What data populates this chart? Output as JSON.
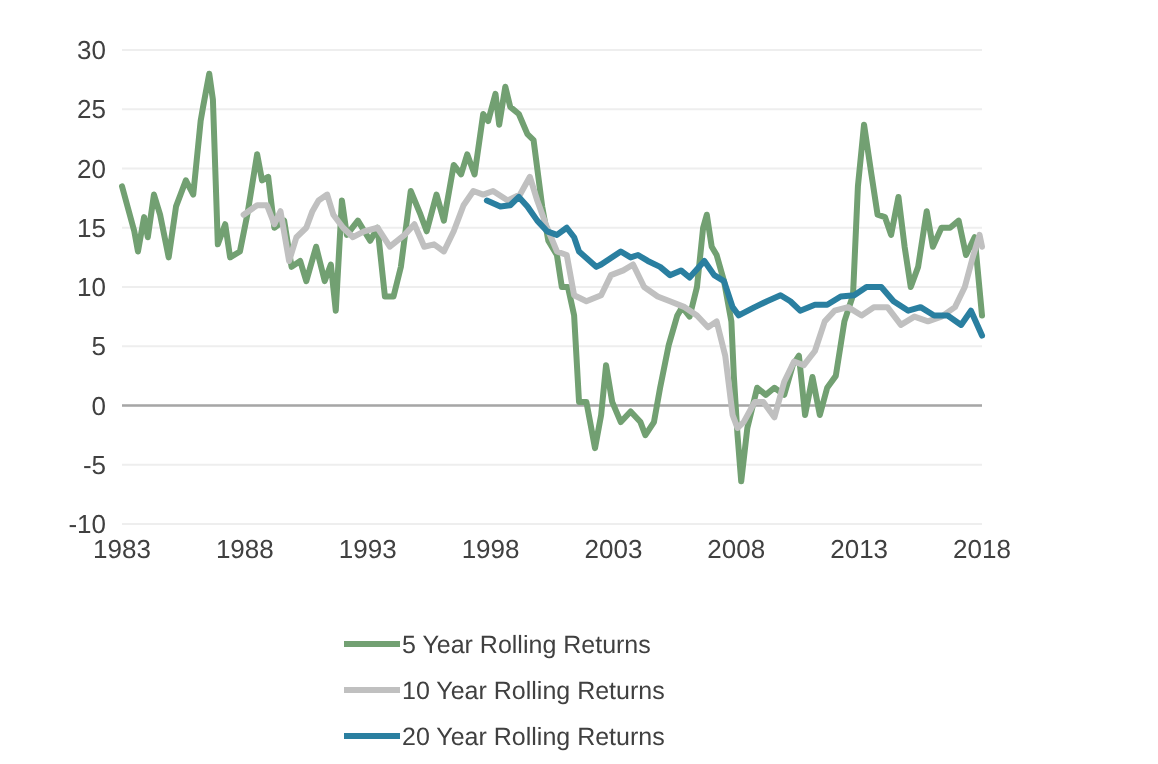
{
  "chart_data": {
    "type": "line",
    "xlim": [
      1983,
      2018
    ],
    "xticks": [
      1983,
      1988,
      1993,
      1998,
      2003,
      2008,
      2013,
      2018
    ],
    "ylim": [
      -10,
      30
    ],
    "yticks": [
      -10,
      -5,
      0,
      5,
      10,
      15,
      20,
      25,
      30
    ],
    "grid": "y",
    "legend": "bottom",
    "marker": "none",
    "line_style": "solid",
    "ref_lines": [
      {
        "axis": "y",
        "value": 0,
        "color": "#a6a6a6"
      }
    ],
    "series": [
      {
        "name": "5 Year Rolling Returns",
        "color": "#72a072",
        "x": [
          1983,
          1983.5,
          1983.65,
          1983.9,
          1984.05,
          1984.3,
          1984.55,
          1984.9,
          1985.2,
          1985.6,
          1985.9,
          1986.2,
          1986.3,
          1986.55,
          1986.7,
          1986.9,
          1987.2,
          1987.4,
          1987.8,
          1988.1,
          1988.5,
          1988.7,
          1988.95,
          1989.2,
          1989.6,
          1989.9,
          1990.25,
          1990.5,
          1990.9,
          1991.25,
          1991.5,
          1991.7,
          1991.95,
          1992.15,
          1992.6,
          1993.1,
          1993.4,
          1993.7,
          1994.05,
          1994.35,
          1994.75,
          1995.15,
          1995.4,
          1995.8,
          1996.1,
          1996.5,
          1996.8,
          1997.05,
          1997.35,
          1997.7,
          1997.9,
          1998.2,
          1998.35,
          1998.6,
          1998.8,
          1999.15,
          1999.5,
          1999.75,
          2000.1,
          2000.35,
          2000.7,
          2000.9,
          2001.15,
          2001.4,
          2001.6,
          2001.9,
          2002.25,
          2002.5,
          2002.7,
          2002.95,
          2003.3,
          2003.7,
          2004.1,
          2004.3,
          2004.65,
          2004.9,
          2005.25,
          2005.6,
          2005.8,
          2006.1,
          2006.4,
          2006.65,
          2006.8,
          2007,
          2007.2,
          2007.5,
          2007.8,
          2007.9,
          2008.05,
          2008.2,
          2008.45,
          2008.85,
          2009.2,
          2009.55,
          2009.95,
          2010.3,
          2010.55,
          2010.8,
          2011.1,
          2011.4,
          2011.7,
          2012.05,
          2012.4,
          2012.75,
          2012.95,
          2013.2,
          2013.5,
          2013.75,
          2014.05,
          2014.3,
          2014.6,
          2014.85,
          2015.1,
          2015.4,
          2015.75,
          2016,
          2016.35,
          2016.7,
          2017.05,
          2017.35,
          2017.7,
          2018
        ],
        "values": [
          18.5,
          14.7,
          13,
          15.9,
          14.2,
          17.8,
          16.1,
          12.5,
          16.8,
          19,
          17.8,
          24,
          25.2,
          28,
          25.8,
          13.6,
          15.3,
          12.5,
          13,
          16.1,
          21.2,
          19,
          19.3,
          15,
          15.6,
          11.7,
          12.2,
          10.5,
          13.4,
          10.5,
          11.9,
          8,
          17.3,
          14.4,
          15.6,
          13.9,
          15,
          9.2,
          9.2,
          11.7,
          18.1,
          16.1,
          14.7,
          17.8,
          15.6,
          20.3,
          19.5,
          21.2,
          19.5,
          24.6,
          24,
          26.3,
          23.7,
          26.9,
          25.2,
          24.6,
          22.9,
          22.4,
          16.8,
          13.9,
          12.7,
          10,
          10,
          7.6,
          0.3,
          0.3,
          -3.6,
          -0.8,
          3.4,
          0.3,
          -1.4,
          -0.5,
          -1.4,
          -2.5,
          -1.4,
          1.5,
          5.1,
          7.6,
          8.3,
          7.5,
          10,
          15,
          16.1,
          13.4,
          12.7,
          10.5,
          7.1,
          2.5,
          -2.5,
          -6.4,
          -1.9,
          1.5,
          0.9,
          1.5,
          0.9,
          3.4,
          4.2,
          -0.8,
          2.4,
          -0.8,
          1.5,
          2.5,
          7.1,
          9.3,
          18.5,
          23.7,
          19.5,
          16.1,
          15.9,
          14.4,
          17.6,
          13.4,
          10,
          11.7,
          16.4,
          13.4,
          15,
          15,
          15.6,
          12.7,
          14.2,
          7.6
        ]
      },
      {
        "name": "10 Year Rolling Returns",
        "color": "#c0c0c0",
        "x": [
          1987.95,
          1988.5,
          1988.9,
          1989.2,
          1989.45,
          1989.8,
          1990.1,
          1990.5,
          1990.75,
          1991,
          1991.35,
          1991.6,
          1992,
          1992.4,
          1992.85,
          1993.4,
          1993.9,
          1994.5,
          1994.9,
          1995.3,
          1995.7,
          1996.1,
          1996.5,
          1996.9,
          1997.3,
          1997.7,
          1998.1,
          1998.7,
          1999.2,
          1999.6,
          1999.9,
          2000.3,
          2000.7,
          2001.1,
          2001.4,
          2001.9,
          2002.5,
          2002.9,
          2003.4,
          2003.8,
          2004.25,
          2004.8,
          2005.3,
          2005.9,
          2006.4,
          2006.85,
          2007.2,
          2007.55,
          2007.85,
          2008.05,
          2008.3,
          2008.75,
          2009.1,
          2009.55,
          2009.95,
          2010.35,
          2010.75,
          2011.2,
          2011.6,
          2012,
          2012.55,
          2013.1,
          2013.6,
          2014.15,
          2014.7,
          2015.25,
          2015.8,
          2016.35,
          2016.9,
          2017.3,
          2017.65,
          2017.9,
          2018
        ],
        "values": [
          16.1,
          16.9,
          16.9,
          15.3,
          16.4,
          12.2,
          14.2,
          15,
          16.4,
          17.3,
          17.8,
          16.1,
          15,
          14.2,
          14.7,
          15,
          13.4,
          14.4,
          15.3,
          13.4,
          13.6,
          13,
          14.7,
          16.9,
          18.1,
          17.8,
          18.1,
          17.3,
          17.8,
          19.3,
          17.3,
          15,
          13,
          12.7,
          9.3,
          8.8,
          9.3,
          11,
          11.4,
          11.9,
          10,
          9.2,
          8.8,
          8.3,
          7.6,
          6.6,
          7.1,
          4.2,
          -0.8,
          -1.9,
          -1.4,
          0.3,
          0.3,
          -1,
          2,
          3.7,
          3.4,
          4.6,
          7.1,
          8,
          8.3,
          7.6,
          8.3,
          8.3,
          6.8,
          7.5,
          7.1,
          7.5,
          8.3,
          10,
          12.7,
          14.4,
          13.4
        ]
      },
      {
        "name": "20 Year Rolling Returns",
        "color": "#2a7fa0",
        "x": [
          1997.85,
          1998.4,
          1998.8,
          1999.15,
          1999.5,
          1999.9,
          2000.3,
          2000.7,
          2001.1,
          2001.4,
          2001.6,
          2002.3,
          2002.5,
          2003.3,
          2003.7,
          2004,
          2004.4,
          2004.9,
          2005.3,
          2005.75,
          2006.1,
          2006.7,
          2007.1,
          2007.5,
          2007.85,
          2008.1,
          2008.75,
          2009.25,
          2009.8,
          2010.2,
          2010.6,
          2011.2,
          2011.7,
          2012.25,
          2012.8,
          2013.3,
          2013.9,
          2014.4,
          2015,
          2015.5,
          2016.05,
          2016.6,
          2017.15,
          2017.55,
          2018
        ],
        "values": [
          17.3,
          16.8,
          16.9,
          17.6,
          16.8,
          15.6,
          14.7,
          14.4,
          15,
          14.2,
          13,
          11.7,
          11.9,
          13,
          12.5,
          12.7,
          12.2,
          11.7,
          11,
          11.4,
          10.8,
          12.2,
          11,
          10.5,
          8.3,
          7.6,
          8.3,
          8.8,
          9.3,
          8.8,
          8,
          8.5,
          8.5,
          9.2,
          9.3,
          10,
          10,
          8.8,
          8,
          8.3,
          7.6,
          7.6,
          6.8,
          8,
          5.9
        ]
      }
    ]
  }
}
